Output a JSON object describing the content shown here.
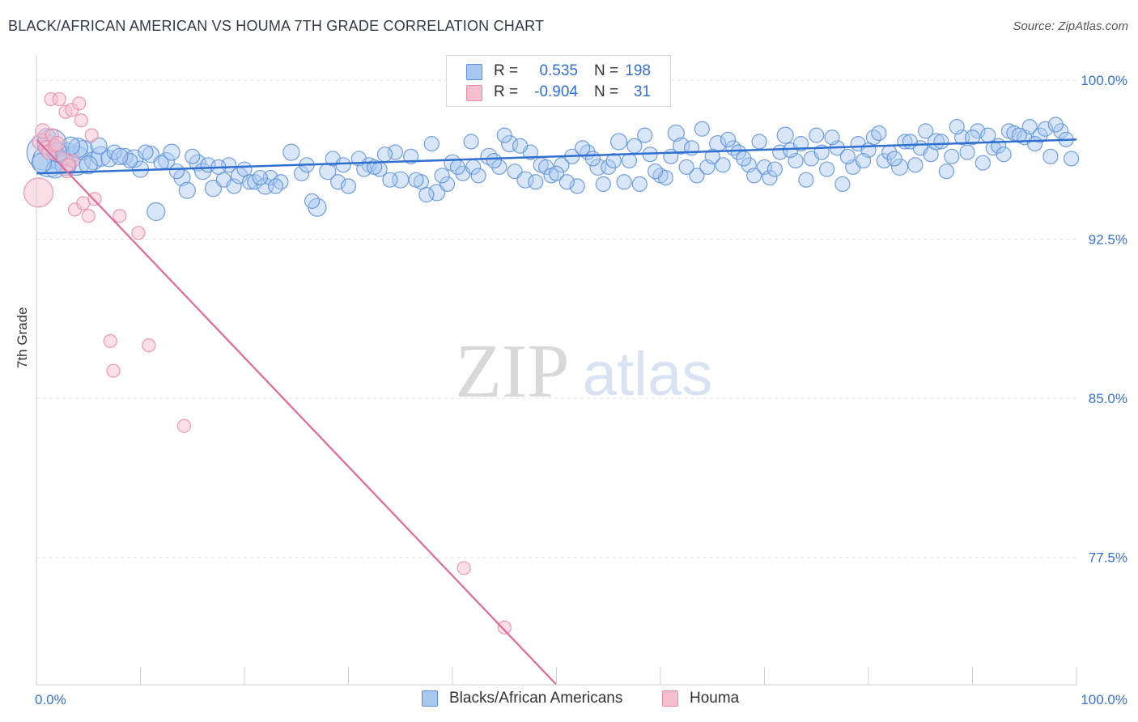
{
  "title": "BLACK/AFRICAN AMERICAN VS HOUMA 7TH GRADE CORRELATION CHART",
  "source": "Source: ZipAtlas.com",
  "watermark": {
    "zip": "ZIP",
    "atlas": "atlas"
  },
  "legend": {
    "rows": [
      {
        "r_label": "R =",
        "r_value": "0.535",
        "n_label": "N =",
        "n_value": "198",
        "color": "#a9c8f0",
        "stroke": "#5b8fd6"
      },
      {
        "r_label": "R =",
        "r_value": "-0.904",
        "n_label": "N =",
        "n_value": "31",
        "color": "#f6bfd0",
        "stroke": "#e98aa8"
      }
    ]
  },
  "colors": {
    "blue": "#6a9fe0",
    "blue_line": "#2f6fd0",
    "pink": "#f2a3bd",
    "pink_line": "#e2689a",
    "tick_text": "#3a72c9"
  },
  "chart_data": {
    "type": "scatter",
    "title": "BLACK/AFRICAN AMERICAN VS HOUMA 7TH GRADE CORRELATION CHART",
    "xlabel": "",
    "ylabel": "7th Grade",
    "xlim": [
      0,
      100
    ],
    "ylim": [
      71.5,
      100.8
    ],
    "x_tick_labels": [
      "0.0%",
      "100.0%"
    ],
    "y_ticks": [
      100.0,
      92.5,
      85.0,
      77.5
    ],
    "y_tick_labels": [
      "100.0%",
      "92.5%",
      "85.0%",
      "77.5%"
    ],
    "grid": true,
    "legend_position": "top-center",
    "series": [
      {
        "name": "Blacks/African Americans",
        "color": "#6a9fe0",
        "trend": {
          "x": [
            0,
            100
          ],
          "y": [
            95.6,
            97.2
          ]
        },
        "points": [
          [
            0.8,
            96.6,
            22
          ],
          [
            1.5,
            97.0,
            18
          ],
          [
            2.2,
            96.4,
            16
          ],
          [
            1.2,
            96.2,
            20
          ],
          [
            3.0,
            96.5,
            14
          ],
          [
            3.8,
            96.2,
            18
          ],
          [
            4.5,
            96.7,
            12
          ],
          [
            5.5,
            96.2,
            11
          ],
          [
            6.2,
            96.4,
            12
          ],
          [
            7.0,
            96.3,
            10
          ],
          [
            8.5,
            96.4,
            10
          ],
          [
            9.4,
            96.3,
            11
          ],
          [
            10.0,
            95.8,
            10
          ],
          [
            11.0,
            96.5,
            10
          ],
          [
            11.5,
            93.8,
            11
          ],
          [
            12.5,
            96.2,
            10
          ],
          [
            13.0,
            96.6,
            10
          ],
          [
            14.0,
            95.4,
            10
          ],
          [
            14.5,
            94.8,
            10
          ],
          [
            15.5,
            96.1,
            10
          ],
          [
            16.0,
            95.7,
            10
          ],
          [
            16.5,
            96.0,
            9
          ],
          [
            17.0,
            94.9,
            10
          ],
          [
            18.0,
            95.3,
            9
          ],
          [
            18.5,
            96.0,
            9
          ],
          [
            19.0,
            95.0,
            9
          ],
          [
            19.5,
            95.5,
            10
          ],
          [
            20.0,
            95.8,
            9
          ],
          [
            20.5,
            95.2,
            9
          ],
          [
            21.0,
            95.2,
            9
          ],
          [
            22.0,
            95.0,
            10
          ],
          [
            22.5,
            95.4,
            9
          ],
          [
            23.5,
            95.2,
            9
          ],
          [
            24.5,
            96.6,
            10
          ],
          [
            25.5,
            95.6,
            9
          ],
          [
            26.0,
            96.0,
            9
          ],
          [
            27.0,
            94.0,
            11
          ],
          [
            28.0,
            95.7,
            10
          ],
          [
            29.0,
            95.2,
            9
          ],
          [
            30.0,
            95.0,
            9
          ],
          [
            31.0,
            96.3,
            9
          ],
          [
            32.0,
            96.0,
            9
          ],
          [
            33.0,
            95.8,
            9
          ],
          [
            34.5,
            96.6,
            9
          ],
          [
            35.0,
            95.3,
            10
          ],
          [
            36.0,
            96.4,
            9
          ],
          [
            37.0,
            95.2,
            9
          ],
          [
            38.0,
            97.0,
            9
          ],
          [
            38.5,
            94.7,
            10
          ],
          [
            39.5,
            95.1,
            9
          ],
          [
            40.0,
            96.1,
            10
          ],
          [
            41.0,
            95.6,
            9
          ],
          [
            42.0,
            95.9,
            9
          ],
          [
            42.5,
            95.5,
            9
          ],
          [
            43.5,
            96.4,
            10
          ],
          [
            44.5,
            95.9,
            9
          ],
          [
            45.5,
            97.0,
            10
          ],
          [
            46.0,
            95.7,
            9
          ],
          [
            47.0,
            95.3,
            10
          ],
          [
            47.5,
            96.6,
            9
          ],
          [
            48.5,
            96.0,
            9
          ],
          [
            49.0,
            95.9,
            9
          ],
          [
            49.5,
            95.5,
            9
          ],
          [
            50.5,
            96.0,
            9
          ],
          [
            51.5,
            96.4,
            9
          ],
          [
            52.0,
            95.0,
            9
          ],
          [
            53.0,
            96.6,
            9
          ],
          [
            54.0,
            95.9,
            10
          ],
          [
            55.0,
            95.9,
            9
          ],
          [
            56.0,
            97.1,
            10
          ],
          [
            56.5,
            95.2,
            9
          ],
          [
            57.5,
            96.9,
            9
          ],
          [
            58.0,
            95.1,
            9
          ],
          [
            59.0,
            96.5,
            9
          ],
          [
            60.0,
            95.5,
            9
          ],
          [
            60.5,
            95.4,
            9
          ],
          [
            61.5,
            97.5,
            10
          ],
          [
            62.0,
            96.9,
            10
          ],
          [
            63.0,
            96.8,
            9
          ],
          [
            63.5,
            95.5,
            9
          ],
          [
            64.5,
            95.9,
            9
          ],
          [
            65.5,
            97.0,
            10
          ],
          [
            66.0,
            96.0,
            9
          ],
          [
            67.0,
            96.8,
            9
          ],
          [
            67.5,
            96.6,
            9
          ],
          [
            68.5,
            96.0,
            9
          ],
          [
            69.0,
            95.5,
            9
          ],
          [
            70.0,
            95.9,
            9
          ],
          [
            70.5,
            95.4,
            9
          ],
          [
            71.5,
            96.6,
            9
          ],
          [
            72.0,
            97.4,
            10
          ],
          [
            73.0,
            96.2,
            9
          ],
          [
            74.0,
            95.3,
            9
          ],
          [
            74.5,
            96.3,
            9
          ],
          [
            75.5,
            96.6,
            9
          ],
          [
            76.0,
            95.8,
            9
          ],
          [
            77.0,
            96.8,
            9
          ],
          [
            77.5,
            95.1,
            9
          ],
          [
            78.5,
            95.9,
            9
          ],
          [
            79.0,
            97.0,
            9
          ],
          [
            80.0,
            96.7,
            9
          ],
          [
            80.5,
            97.3,
            9
          ],
          [
            81.5,
            96.2,
            9
          ],
          [
            82.0,
            96.6,
            9
          ],
          [
            83.0,
            95.9,
            10
          ],
          [
            83.5,
            97.1,
            9
          ],
          [
            84.5,
            96.0,
            9
          ],
          [
            85.0,
            96.8,
            9
          ],
          [
            86.0,
            96.5,
            9
          ],
          [
            86.5,
            97.1,
            10
          ],
          [
            87.5,
            95.7,
            9
          ],
          [
            88.0,
            96.4,
            9
          ],
          [
            89.0,
            97.3,
            9
          ],
          [
            89.5,
            96.6,
            9
          ],
          [
            90.5,
            97.6,
            9
          ],
          [
            91.0,
            96.1,
            9
          ],
          [
            92.0,
            96.8,
            9
          ],
          [
            92.5,
            96.9,
            9
          ],
          [
            93.5,
            97.6,
            9
          ],
          [
            94.0,
            97.5,
            9
          ],
          [
            95.0,
            97.3,
            9
          ],
          [
            95.5,
            97.8,
            9
          ],
          [
            96.5,
            97.4,
            9
          ],
          [
            97.0,
            97.7,
            9
          ],
          [
            97.5,
            96.4,
            9
          ],
          [
            98.5,
            97.6,
            9
          ],
          [
            99.0,
            97.2,
            9
          ],
          [
            99.5,
            96.3,
            9
          ],
          [
            40.5,
            95.9,
            9
          ],
          [
            41.8,
            97.1,
            9
          ],
          [
            44.0,
            96.2,
            9
          ],
          [
            45.0,
            97.4,
            9
          ],
          [
            46.5,
            96.9,
            9
          ],
          [
            48.0,
            95.2,
            9
          ],
          [
            50.0,
            95.6,
            9
          ],
          [
            51.0,
            95.2,
            9
          ],
          [
            52.5,
            96.8,
            9
          ],
          [
            53.5,
            96.3,
            9
          ],
          [
            54.5,
            95.1,
            9
          ],
          [
            55.5,
            96.2,
            9
          ],
          [
            57.0,
            96.2,
            9
          ],
          [
            58.5,
            97.4,
            9
          ],
          [
            59.5,
            95.7,
            9
          ],
          [
            61.0,
            96.4,
            9
          ],
          [
            62.5,
            95.9,
            9
          ],
          [
            64.0,
            97.7,
            9
          ],
          [
            65.0,
            96.4,
            9
          ],
          [
            66.5,
            97.2,
            9
          ],
          [
            68.0,
            96.3,
            9
          ],
          [
            69.5,
            97.1,
            9
          ],
          [
            71.0,
            95.8,
            9
          ],
          [
            72.5,
            96.7,
            9
          ],
          [
            73.5,
            97.0,
            9
          ],
          [
            75.0,
            97.4,
            9
          ],
          [
            76.5,
            97.3,
            9
          ],
          [
            78.0,
            96.4,
            9
          ],
          [
            79.5,
            96.2,
            9
          ],
          [
            81.0,
            97.5,
            9
          ],
          [
            82.5,
            96.3,
            9
          ],
          [
            84.0,
            97.1,
            9
          ],
          [
            85.5,
            97.6,
            9
          ],
          [
            87.0,
            97.1,
            9
          ],
          [
            88.5,
            97.8,
            9
          ],
          [
            90.0,
            97.3,
            9
          ],
          [
            91.5,
            97.4,
            9
          ],
          [
            93.0,
            96.5,
            9
          ],
          [
            94.5,
            97.4,
            9
          ],
          [
            96.0,
            97.0,
            9
          ],
          [
            98.0,
            97.9,
            9
          ],
          [
            28.5,
            96.3,
            9
          ],
          [
            29.5,
            96.0,
            9
          ],
          [
            31.5,
            95.8,
            9
          ],
          [
            32.5,
            95.9,
            9
          ],
          [
            33.5,
            96.5,
            9
          ],
          [
            34.0,
            95.3,
            9
          ],
          [
            36.5,
            95.3,
            9
          ],
          [
            37.5,
            94.6,
            9
          ],
          [
            39.0,
            95.5,
            9
          ],
          [
            26.5,
            94.3,
            9
          ],
          [
            23.0,
            95.0,
            9
          ],
          [
            21.5,
            95.4,
            9
          ],
          [
            17.5,
            95.9,
            9
          ],
          [
            13.5,
            95.7,
            9
          ],
          [
            12.0,
            96.1,
            9
          ],
          [
            9.0,
            96.2,
            9
          ],
          [
            7.5,
            96.6,
            9
          ],
          [
            6.0,
            96.9,
            10
          ],
          [
            2.8,
            96.0,
            13
          ],
          [
            1.8,
            95.8,
            11
          ],
          [
            4.0,
            96.8,
            12
          ],
          [
            5.0,
            96.0,
            11
          ],
          [
            3.3,
            96.9,
            11
          ],
          [
            2.0,
            96.6,
            12
          ],
          [
            1.0,
            97.3,
            11
          ],
          [
            0.5,
            96.1,
            12
          ],
          [
            8.0,
            96.4,
            10
          ],
          [
            10.5,
            96.6,
            9
          ],
          [
            15.0,
            96.4,
            9
          ]
        ]
      },
      {
        "name": "Houma",
        "color": "#f2a3bd",
        "trend": {
          "x": [
            0,
            50
          ],
          "y": [
            97.2,
            71.5
          ]
        },
        "points": [
          [
            0.2,
            94.7,
            18
          ],
          [
            0.4,
            97.1,
            10
          ],
          [
            0.6,
            97.6,
            9
          ],
          [
            0.9,
            96.8,
            9
          ],
          [
            1.2,
            96.6,
            9
          ],
          [
            1.5,
            97.4,
            8
          ],
          [
            1.8,
            96.9,
            8
          ],
          [
            2.0,
            97.0,
            9
          ],
          [
            1.4,
            99.1,
            8
          ],
          [
            2.2,
            99.1,
            8
          ],
          [
            2.8,
            98.5,
            8
          ],
          [
            3.4,
            98.6,
            8
          ],
          [
            4.1,
            98.9,
            8
          ],
          [
            4.3,
            98.1,
            8
          ],
          [
            5.3,
            97.4,
            8
          ],
          [
            2.6,
            96.3,
            8
          ],
          [
            2.9,
            95.7,
            8
          ],
          [
            3.5,
            96.2,
            8
          ],
          [
            3.7,
            93.9,
            8
          ],
          [
            4.5,
            94.2,
            8
          ],
          [
            5.0,
            93.6,
            8
          ],
          [
            5.6,
            94.4,
            8
          ],
          [
            8.0,
            93.6,
            8
          ],
          [
            9.8,
            92.8,
            8
          ],
          [
            7.1,
            87.7,
            8
          ],
          [
            10.8,
            87.5,
            8
          ],
          [
            7.4,
            86.3,
            8
          ],
          [
            14.2,
            83.7,
            8
          ],
          [
            41.1,
            77.0,
            8
          ],
          [
            45.0,
            74.2,
            8
          ],
          [
            3.1,
            96.0,
            8
          ]
        ]
      }
    ]
  },
  "bottom_legend": [
    {
      "label": "Blacks/African Americans"
    },
    {
      "label": "Houma"
    }
  ]
}
